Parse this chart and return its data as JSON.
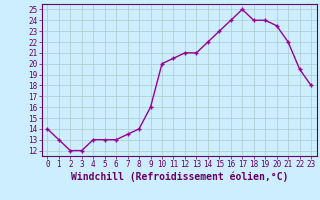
{
  "x": [
    0,
    1,
    2,
    3,
    4,
    5,
    6,
    7,
    8,
    9,
    10,
    11,
    12,
    13,
    14,
    15,
    16,
    17,
    18,
    19,
    20,
    21,
    22,
    23
  ],
  "y": [
    14,
    13,
    12,
    12,
    13,
    13,
    13,
    13.5,
    14,
    16,
    20,
    20.5,
    21,
    21,
    22,
    23,
    24,
    25,
    24,
    24,
    23.5,
    22,
    19.5,
    18
  ],
  "line_color": "#990099",
  "marker": "+",
  "marker_size": 3,
  "bg_color": "#cceeff",
  "grid_color": "#aacccc",
  "xlabel": "Windchill (Refroidissement éolien,°C)",
  "xlabel_fontsize": 7,
  "xlim": [
    -0.5,
    23.5
  ],
  "ylim": [
    11.5,
    25.5
  ],
  "yticks": [
    12,
    13,
    14,
    15,
    16,
    17,
    18,
    19,
    20,
    21,
    22,
    23,
    24,
    25
  ],
  "xticks": [
    0,
    1,
    2,
    3,
    4,
    5,
    6,
    7,
    8,
    9,
    10,
    11,
    12,
    13,
    14,
    15,
    16,
    17,
    18,
    19,
    20,
    21,
    22,
    23
  ],
  "tick_fontsize": 5.5,
  "axis_color": "#660066",
  "line_width": 1.0,
  "marker_edge_width": 1.0
}
